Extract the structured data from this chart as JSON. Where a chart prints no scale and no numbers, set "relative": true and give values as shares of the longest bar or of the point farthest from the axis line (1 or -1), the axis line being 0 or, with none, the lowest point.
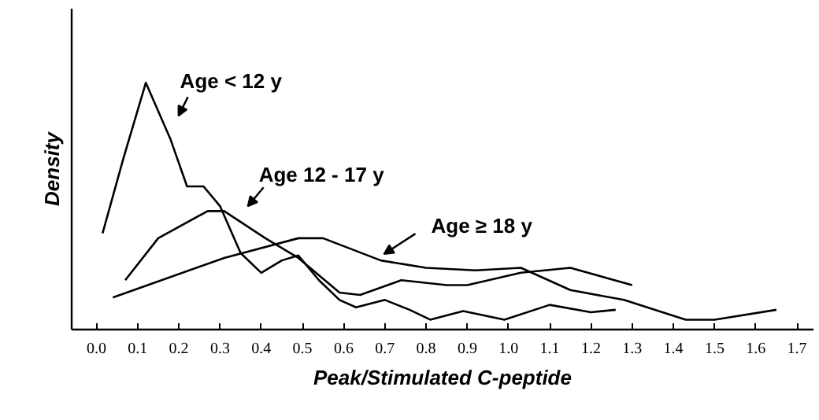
{
  "chart_data": {
    "type": "line",
    "xlabel": "Peak/Stimulated C-peptide",
    "ylabel": "Density",
    "relative": true,
    "grid": false,
    "marker": "none",
    "line_style": "solid",
    "xlim": [
      -0.06,
      1.74
    ],
    "xticks": [
      {
        "value": 0,
        "label": "0.0"
      },
      0.1,
      0.2,
      0.3,
      0.4,
      0.5,
      0.6,
      0.7,
      0.8,
      0.9,
      {
        "value": 1,
        "label": "1.0"
      },
      1.1,
      1.2,
      1.3,
      1.4,
      1.5,
      1.6,
      1.7
    ],
    "series": [
      {
        "name": "Age < 12 y",
        "color": "#000000",
        "x": [
          0.015,
          0.065,
          0.12,
          0.18,
          0.22,
          0.26,
          0.3,
          0.35,
          0.4,
          0.45,
          0.49,
          0.54,
          0.59,
          0.63,
          0.7,
          0.76,
          0.81,
          0.89,
          0.99,
          1.1,
          1.2,
          1.26
        ],
        "values": [
          0.39,
          0.69,
          1.0,
          0.77,
          0.58,
          0.58,
          0.5,
          0.31,
          0.23,
          0.28,
          0.3,
          0.2,
          0.12,
          0.09,
          0.12,
          0.08,
          0.04,
          0.075,
          0.04,
          0.1,
          0.07,
          0.08
        ]
      },
      {
        "name": "Age 12 - 17 y",
        "color": "#000000",
        "x": [
          0.07,
          0.15,
          0.27,
          0.31,
          0.41,
          0.49,
          0.59,
          0.64,
          0.74,
          0.85,
          0.9,
          1.03,
          1.15,
          1.3
        ],
        "values": [
          0.2,
          0.37,
          0.48,
          0.48,
          0.37,
          0.29,
          0.15,
          0.14,
          0.2,
          0.18,
          0.18,
          0.23,
          0.25,
          0.18
        ]
      },
      {
        "name": "Age ≥ 18 y",
        "color": "#000000",
        "x": [
          0.04,
          0.31,
          0.49,
          0.55,
          0.69,
          0.8,
          0.92,
          1.03,
          1.15,
          1.28,
          1.43,
          1.5,
          1.65
        ],
        "values": [
          0.13,
          0.29,
          0.37,
          0.37,
          0.28,
          0.25,
          0.24,
          0.25,
          0.16,
          0.12,
          0.04,
          0.04,
          0.08
        ]
      }
    ]
  }
}
